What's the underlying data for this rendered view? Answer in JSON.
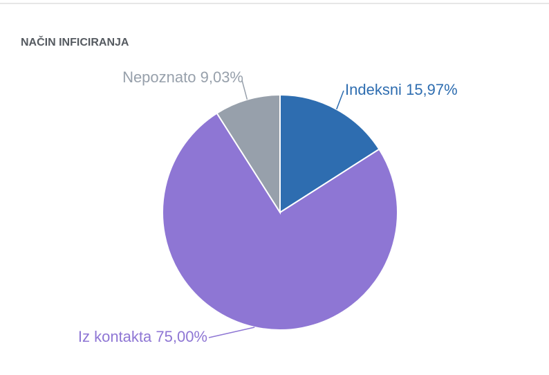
{
  "chart_data": {
    "type": "pie",
    "title": "NAČIN INFICIRANJA",
    "categories": [
      "Indeksni",
      "Iz kontakta",
      "Nepoznato"
    ],
    "values": [
      15.97,
      75.0,
      9.03
    ],
    "value_labels": [
      "15,97%",
      "75,00%",
      "9,03%"
    ],
    "colors": [
      "#2e6db0",
      "#8e76d4",
      "#97a0ab"
    ]
  }
}
